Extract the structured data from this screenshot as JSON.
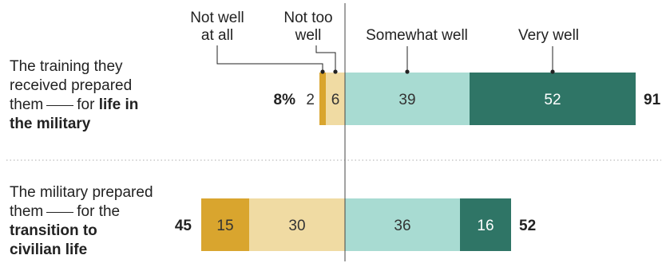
{
  "chart_data": {
    "type": "bar",
    "orientation": "horizontal",
    "stacked": "diverging",
    "series": [
      {
        "name": "Not well at all",
        "name_lines": [
          "Not well",
          "at all"
        ],
        "color": "#d9a52e"
      },
      {
        "name": "Not too well",
        "name_lines": [
          "Not too",
          "well"
        ],
        "color": "#f0dba3"
      },
      {
        "name": "Somewhat well",
        "name_lines": [
          "Somewhat well"
        ],
        "color": "#a8dbd2"
      },
      {
        "name": "Very well",
        "name_lines": [
          "Very well"
        ],
        "color": "#2f7566"
      }
    ],
    "rows": [
      {
        "label_parts": {
          "l1": "The training they",
          "l2": "received prepared",
          "l3a": "them",
          "l3b": "for",
          "l3c": "life in",
          "l4": "the military"
        },
        "values": [
          2,
          6,
          39,
          52
        ],
        "value_labels": [
          "2",
          "6",
          "39",
          "52"
        ],
        "negative_total": "8%",
        "positive_total": "91"
      },
      {
        "label_parts": {
          "l1": "The military prepared",
          "l2a": "them",
          "l2b": "for the",
          "l3": "transition to",
          "l4": "civilian life"
        },
        "values": [
          15,
          30,
          36,
          16
        ],
        "value_labels": [
          "15",
          "30",
          "36",
          "16"
        ],
        "negative_total": "45",
        "positive_total": "52"
      }
    ],
    "xlim": [
      -45,
      91
    ]
  }
}
